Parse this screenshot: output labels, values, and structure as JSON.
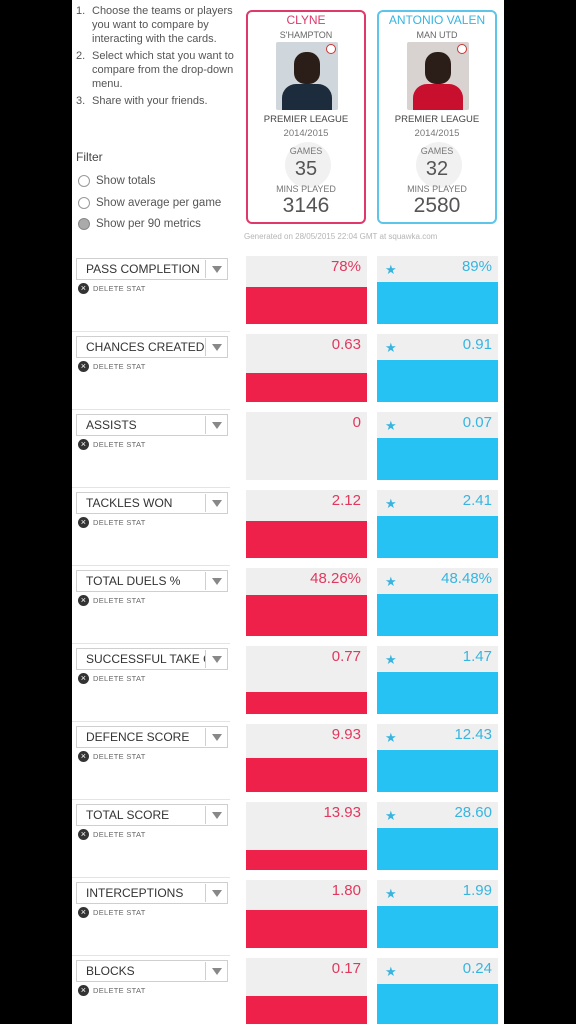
{
  "instructions": [
    {
      "num": "1.",
      "text": "Choose the teams or players you want to compare by interacting with the cards."
    },
    {
      "num": "2.",
      "text": "Select which stat you want to compare from the drop-down menu."
    },
    {
      "num": "3.",
      "text": "Share with your friends."
    }
  ],
  "filter": {
    "title": "Filter",
    "options": [
      "Show totals",
      "Show average per game",
      "Show per 90 metrics"
    ],
    "selected_index": 2
  },
  "players": [
    {
      "name": "CLYNE",
      "team": "S'HAMPTON",
      "league": "PREMIER LEAGUE",
      "season": "2014/2015",
      "games_label": "GAMES",
      "games": "35",
      "mins_label": "MINS PLAYED",
      "mins": "3146",
      "color": "#e0386a"
    },
    {
      "name": "ANTONIO VALEN",
      "team": "MAN UTD",
      "league": "PREMIER LEAGUE",
      "season": "2014/2015",
      "games_label": "GAMES",
      "games": "32",
      "mins_label": "MINS PLAYED",
      "mins": "2580",
      "color": "#5cc5e8"
    }
  ],
  "generated": "Generated on 28/05/2015 22:04 GMT at squawka.com",
  "delete_label": "DELETE STAT",
  "stats": [
    {
      "label": "PASS COMPLETION",
      "p1": "78%",
      "p2": "89%",
      "p1_fill": 0.55,
      "p2_fill": 0.62,
      "star": "p2"
    },
    {
      "label": "CHANCES CREATED",
      "p1": "0.63",
      "p2": "0.91",
      "p1_fill": 0.43,
      "p2_fill": 0.62,
      "star": "p2"
    },
    {
      "label": "ASSISTS",
      "p1": "0",
      "p2": "0.07",
      "p1_fill": 0,
      "p2_fill": 0.62,
      "star": "p2"
    },
    {
      "label": "TACKLES WON",
      "p1": "2.12",
      "p2": "2.41",
      "p1_fill": 0.55,
      "p2_fill": 0.62,
      "star": "p2"
    },
    {
      "label": "TOTAL DUELS %",
      "p1": "48.26%",
      "p2": "48.48%",
      "p1_fill": 0.61,
      "p2_fill": 0.62,
      "star": "p2"
    },
    {
      "label": "SUCCESSFUL TAKE ON",
      "p1": "0.77",
      "p2": "1.47",
      "p1_fill": 0.32,
      "p2_fill": 0.62,
      "star": "p2"
    },
    {
      "label": "DEFENCE SCORE",
      "p1": "9.93",
      "p2": "12.43",
      "p1_fill": 0.5,
      "p2_fill": 0.62,
      "star": "p2"
    },
    {
      "label": "TOTAL SCORE",
      "p1": "13.93",
      "p2": "28.60",
      "p1_fill": 0.3,
      "p2_fill": 0.62,
      "star": "p2"
    },
    {
      "label": "INTERCEPTIONS",
      "p1": "1.80",
      "p2": "1.99",
      "p1_fill": 0.56,
      "p2_fill": 0.62,
      "star": "p2"
    },
    {
      "label": "BLOCKS",
      "p1": "0.17",
      "p2": "0.24",
      "p1_fill": 0.44,
      "p2_fill": 0.62,
      "star": "p2"
    }
  ],
  "icons": {
    "star": "star-icon",
    "dropdown": "chevron-down-icon",
    "delete": "close-circle-icon"
  },
  "colors": {
    "player1": "#ed2149",
    "player2": "#27c2f4",
    "cell_bg": "#efefef"
  }
}
